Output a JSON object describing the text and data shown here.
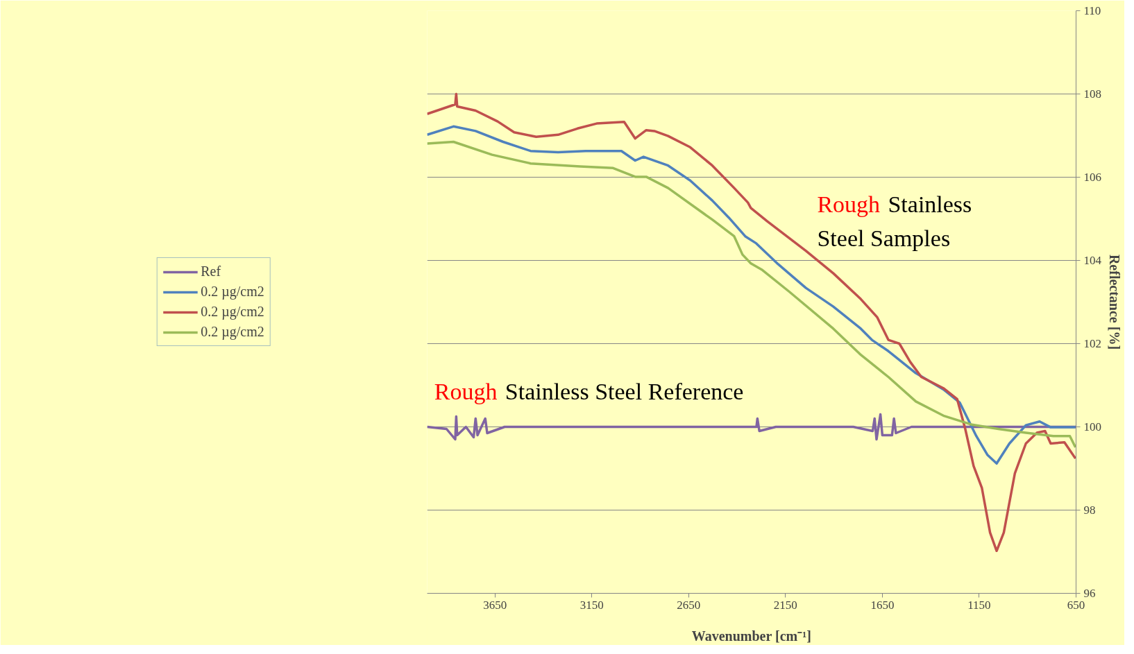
{
  "chart_data": {
    "type": "line",
    "xlabel": "Wavenumber [cm⁻¹]",
    "ylabel": "Reflectance [%]",
    "xlim": [
      4000,
      650
    ],
    "xticks": [
      3650,
      3150,
      2650,
      2150,
      1650,
      1150,
      650
    ],
    "ylim": [
      96,
      110
    ],
    "yticks": [
      96,
      98,
      100,
      102,
      104,
      106,
      108,
      110
    ],
    "grid": "y",
    "legend": "left",
    "marker": "none",
    "line_style": "solid",
    "annotations": [
      "Rough Stainless\nSteel Samples",
      "Rough Stainless Steel Reference"
    ],
    "series": [
      {
        "name": "Ref",
        "color": "#8064a2",
        "x": [
          4000,
          3900,
          3855,
          3850,
          3845,
          3800,
          3760,
          3750,
          3740,
          3700,
          3690,
          3600,
          3400,
          3000,
          2500,
          2300,
          2295,
          2285,
          2200,
          1800,
          1700,
          1690,
          1680,
          1660,
          1650,
          1600,
          1590,
          1580,
          1500,
          1300,
          1000,
          800,
          700,
          650
        ],
        "values": [
          100,
          99.95,
          99.7,
          100.25,
          99.8,
          100,
          99.75,
          100.2,
          99.8,
          100.2,
          99.85,
          100,
          100,
          100,
          100,
          100,
          100.2,
          99.9,
          100,
          100,
          99.9,
          100.2,
          99.7,
          100.3,
          99.8,
          99.8,
          100.2,
          99.85,
          100,
          100,
          100,
          100,
          100,
          100
        ]
      },
      {
        "name": "0.2 µg/cm2",
        "color": "#4f81bd",
        "x": [
          4000,
          3864,
          3750,
          3608,
          3466,
          3324,
          3182,
          2997,
          2926,
          2883,
          2756,
          2642,
          2528,
          2443,
          2358,
          2301,
          2188,
          2045,
          1903,
          1761,
          1704,
          1619,
          1477,
          1335,
          1250,
          1165,
          1108,
          1060,
          994,
          909,
          838,
          781,
          653
        ],
        "values": [
          107.02,
          107.22,
          107.11,
          106.85,
          106.63,
          106.6,
          106.63,
          106.63,
          106.4,
          106.49,
          106.28,
          105.92,
          105.44,
          105.03,
          104.58,
          104.41,
          103.91,
          103.34,
          102.89,
          102.36,
          102.09,
          101.82,
          101.29,
          100.9,
          100.58,
          99.78,
          99.33,
          99.12,
          99.6,
          100.04,
          100.13,
          99.99,
          99.99
        ]
      },
      {
        "name": "0.2 µg/cm2",
        "color": "#c0504d",
        "x": [
          4000,
          3855,
          3850,
          3845,
          3750,
          3636,
          3551,
          3437,
          3324,
          3224,
          3125,
          2983,
          2926,
          2869,
          2827,
          2756,
          2642,
          2528,
          2415,
          2344,
          2329,
          2244,
          2045,
          1903,
          1761,
          1676,
          1619,
          1562,
          1506,
          1449,
          1335,
          1264,
          1222,
          1179,
          1136,
          1094,
          1060,
          1023,
          966,
          909,
          852,
          810,
          781,
          710,
          653
        ],
        "values": [
          107.52,
          107.75,
          108.0,
          107.7,
          107.6,
          107.34,
          107.08,
          106.97,
          107.02,
          107.17,
          107.29,
          107.33,
          106.93,
          107.13,
          107.11,
          106.99,
          106.72,
          106.28,
          105.74,
          105.39,
          105.26,
          104.94,
          104.23,
          103.69,
          103.07,
          102.63,
          102.09,
          102.0,
          101.56,
          101.2,
          100.93,
          100.67,
          99.95,
          99.06,
          98.53,
          97.46,
          97.02,
          97.46,
          98.88,
          99.6,
          99.86,
          99.9,
          99.6,
          99.63,
          99.24
        ]
      },
      {
        "name": "0.2 µg/cm2",
        "color": "#9bbb59",
        "x": [
          4000,
          3864,
          3665,
          3466,
          3210,
          3040,
          2926,
          2869,
          2756,
          2528,
          2415,
          2372,
          2329,
          2273,
          2131,
          1903,
          1761,
          1619,
          1477,
          1335,
          1193,
          1051,
          909,
          767,
          682,
          653
        ],
        "values": [
          106.81,
          106.85,
          106.54,
          106.33,
          106.26,
          106.22,
          106.01,
          106.01,
          105.74,
          104.98,
          104.58,
          104.14,
          103.93,
          103.78,
          103.25,
          102.36,
          101.73,
          101.2,
          100.61,
          100.27,
          100.06,
          99.95,
          99.86,
          99.78,
          99.78,
          99.51
        ]
      }
    ]
  }
}
